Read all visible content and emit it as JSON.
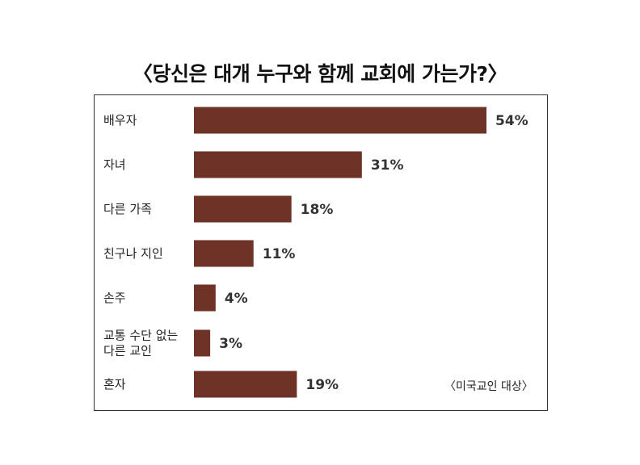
{
  "chart_data": {
    "type": "bar",
    "orientation": "horizontal",
    "title": "〈당신은 대개 누구와 함께 교회에 가는가?〉",
    "note": "〈미국교인 대상〉",
    "categories": [
      [
        "배우자"
      ],
      [
        "자녀"
      ],
      [
        "다른 가족"
      ],
      [
        "친구나 지인"
      ],
      [
        "손주"
      ],
      [
        "교통 수단 없는",
        "다른 교인"
      ],
      [
        "혼자"
      ]
    ],
    "values": [
      54,
      31,
      18,
      11,
      4,
      3,
      19
    ],
    "value_labels": [
      "54%",
      "31%",
      "18%",
      "11%",
      "4%",
      "3%",
      "19%"
    ],
    "unit": "%",
    "xlim": [
      0,
      54
    ],
    "grid": false,
    "legend": "none",
    "bar_color": "#6e3326"
  }
}
